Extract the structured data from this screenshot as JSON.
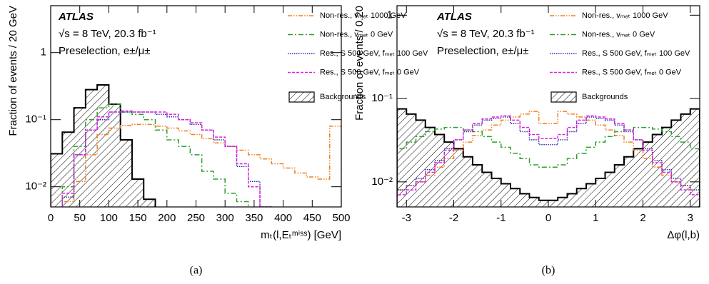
{
  "chart_data": [
    {
      "type": "histogram",
      "caption": "(a)",
      "ylabel": "Fraction of events / 20 GeV",
      "xlabel": "mₜ(l,Eₜᵐⁱˢˢ) [GeV]",
      "annotations": [
        "ATLAS",
        "√s = 8 TeV, 20.3 fb⁻¹",
        "Preselection, e±/μ±"
      ],
      "xlim": [
        0,
        500
      ],
      "xticks": [
        0,
        50,
        100,
        150,
        200,
        250,
        300,
        350,
        400,
        450,
        500
      ],
      "ylim": [
        0.005,
        5
      ],
      "log_y": true,
      "yticks": [
        {
          "value": 0.01,
          "label": "10⁻²"
        },
        {
          "value": 0.1,
          "label": "10⁻¹"
        },
        1
      ],
      "bins": [
        0,
        20,
        40,
        60,
        80,
        100,
        120,
        140,
        160,
        180,
        200,
        220,
        240,
        260,
        280,
        300,
        320,
        340,
        360,
        380,
        400,
        420,
        440,
        460,
        480,
        500
      ],
      "series": [
        {
          "name": "Non-res., vₘₑₜ 1000 GeV",
          "color": "#f07f1e",
          "style": "dash-dot-dot",
          "values": [
            null,
            0.006,
            0.012,
            0.03,
            0.06,
            0.075,
            0.082,
            0.085,
            0.085,
            0.08,
            0.075,
            0.068,
            0.06,
            0.052,
            0.045,
            0.04,
            0.035,
            0.03,
            0.026,
            0.022,
            0.019,
            0.016,
            0.014,
            0.013,
            0.08
          ]
        },
        {
          "name": "Non-res., vₘₑₜ 0 GeV",
          "color": "#2ca02c",
          "style": "dash-dot",
          "values": [
            null,
            0.01,
            0.04,
            0.1,
            0.15,
            0.17,
            0.13,
            0.12,
            0.1,
            0.07,
            0.05,
            0.04,
            0.03,
            0.017,
            0.013,
            0.008,
            0.006,
            null,
            null,
            null,
            null,
            null,
            null,
            null,
            null
          ]
        },
        {
          "name": "Res., S 500 GeV, fₘₑₜ 100 GeV",
          "color": "#2a2aa8",
          "style": "dotted",
          "values": [
            null,
            0.007,
            0.03,
            0.07,
            0.1,
            0.13,
            0.13,
            0.13,
            0.13,
            0.12,
            0.11,
            0.1,
            0.085,
            0.07,
            0.05,
            0.04,
            0.02,
            0.012,
            0.005,
            null,
            null,
            null,
            null,
            null,
            null
          ]
        },
        {
          "name": "Res., S 500 GeV, fₘₑₜ 0 GeV",
          "color": "#e020e0",
          "style": "dashed",
          "values": [
            null,
            0.008,
            0.03,
            0.07,
            0.11,
            0.13,
            0.135,
            0.13,
            0.13,
            0.13,
            0.12,
            0.1,
            0.09,
            0.07,
            0.055,
            0.04,
            0.022,
            0.01,
            0.005,
            null,
            null,
            null,
            null,
            null,
            null
          ]
        },
        {
          "name": "Backgrounds",
          "color": "#000000",
          "style": "hatched",
          "values": [
            0.031,
            0.065,
            0.15,
            0.28,
            0.33,
            0.17,
            0.05,
            0.013,
            0.0065,
            null,
            null,
            null,
            null,
            null,
            null,
            null,
            null,
            null,
            null,
            null,
            null,
            null,
            null,
            null,
            null
          ]
        }
      ]
    },
    {
      "type": "histogram",
      "caption": "(b)",
      "ylabel": "Fraction of events / 0.20",
      "xlabel": "Δφ(l,b)",
      "annotations": [
        "ATLAS",
        "√s = 8 TeV, 20.3 fb⁻¹",
        "Preselection, e±/μ±"
      ],
      "xlim": [
        -3.2,
        3.2
      ],
      "xticks": [
        -3,
        -2,
        -1,
        0,
        1,
        2,
        3
      ],
      "ylim": [
        0.005,
        1.3
      ],
      "log_y": true,
      "yticks": [
        {
          "value": 0.01,
          "label": "10⁻²"
        },
        {
          "value": 0.1,
          "label": "10⁻¹"
        },
        1
      ],
      "bins": [
        -3.2,
        -3.0,
        -2.8,
        -2.6,
        -2.4,
        -2.2,
        -2.0,
        -1.8,
        -1.6,
        -1.4,
        -1.2,
        -1.0,
        -0.8,
        -0.6,
        -0.4,
        -0.2,
        0,
        0.2,
        0.4,
        0.6,
        0.8,
        1.0,
        1.2,
        1.4,
        1.6,
        1.8,
        2.0,
        2.2,
        2.4,
        2.6,
        2.8,
        3.0,
        3.2
      ],
      "series": [
        {
          "name": "Non-res., vₘₑₜ 1000 GeV",
          "color": "#f07f1e",
          "style": "dash-dot-dot",
          "values": [
            0.008,
            0.009,
            0.01,
            0.012,
            0.015,
            0.019,
            0.024,
            0.03,
            0.036,
            0.042,
            0.048,
            0.055,
            0.06,
            0.065,
            0.07,
            0.05,
            0.05,
            0.07,
            0.065,
            0.06,
            0.055,
            0.048,
            0.042,
            0.036,
            0.03,
            0.024,
            0.019,
            0.015,
            0.012,
            0.01,
            0.009,
            0.008
          ]
        },
        {
          "name": "Non-res., vₘₑₜ 0 GeV",
          "color": "#2ca02c",
          "style": "dash-dot",
          "values": [
            0.025,
            0.03,
            0.035,
            0.04,
            0.043,
            0.045,
            0.045,
            0.042,
            0.04,
            0.035,
            0.03,
            0.026,
            0.022,
            0.019,
            0.016,
            0.015,
            0.015,
            0.016,
            0.019,
            0.022,
            0.026,
            0.03,
            0.035,
            0.04,
            0.042,
            0.045,
            0.045,
            0.043,
            0.04,
            0.035,
            0.03,
            0.025
          ]
        },
        {
          "name": "Res., S 500 GeV, fₘₑₜ 100 GeV",
          "color": "#2a2aa8",
          "style": "dotted",
          "values": [
            0.008,
            0.009,
            0.011,
            0.014,
            0.018,
            0.025,
            0.032,
            0.04,
            0.048,
            0.055,
            0.058,
            0.06,
            0.05,
            0.04,
            0.032,
            0.028,
            0.028,
            0.032,
            0.04,
            0.05,
            0.06,
            0.058,
            0.055,
            0.048,
            0.04,
            0.032,
            0.025,
            0.018,
            0.014,
            0.011,
            0.009,
            0.008
          ]
        },
        {
          "name": "Res., S 500 GeV, fₘₑₜ 0 GeV",
          "color": "#e020e0",
          "style": "dashed",
          "values": [
            0.007,
            0.008,
            0.01,
            0.013,
            0.017,
            0.024,
            0.032,
            0.042,
            0.05,
            0.057,
            0.06,
            0.062,
            0.055,
            0.045,
            0.037,
            0.033,
            0.033,
            0.037,
            0.045,
            0.055,
            0.062,
            0.06,
            0.057,
            0.05,
            0.042,
            0.032,
            0.024,
            0.017,
            0.013,
            0.01,
            0.008,
            0.007
          ]
        },
        {
          "name": "Backgrounds",
          "color": "#000000",
          "style": "hatched",
          "values": [
            0.075,
            0.065,
            0.055,
            0.045,
            0.037,
            0.03,
            0.025,
            0.02,
            0.016,
            0.013,
            0.011,
            0.0095,
            0.0083,
            0.0072,
            0.0065,
            0.006,
            0.006,
            0.0065,
            0.0072,
            0.0083,
            0.0095,
            0.011,
            0.013,
            0.016,
            0.02,
            0.025,
            0.03,
            0.037,
            0.045,
            0.055,
            0.065,
            0.075
          ]
        }
      ]
    }
  ]
}
